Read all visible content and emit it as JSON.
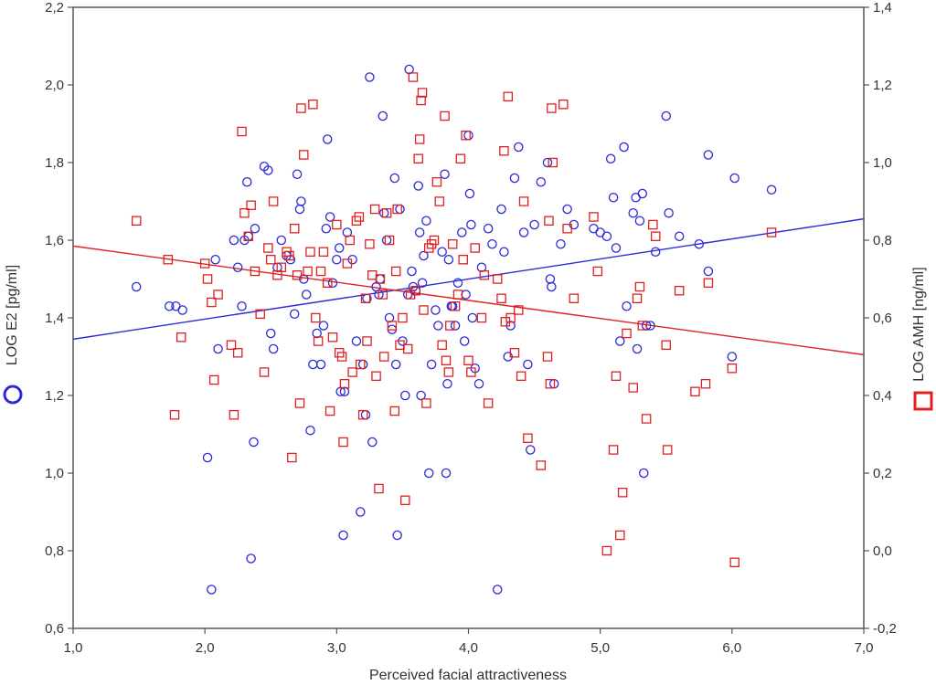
{
  "chart_data": {
    "type": "scatter",
    "title": "",
    "xlabel": "Perceived facial attractiveness",
    "ylabel_left": "LOG E2 [pg/ml]",
    "ylabel_right": "LOG AMH [ng/ml]",
    "xlim": [
      1.0,
      7.0
    ],
    "ylim_left": [
      0.6,
      2.2
    ],
    "ylim_right": [
      -0.2,
      1.4
    ],
    "x_ticks": [
      "1,0",
      "2,0",
      "3,0",
      "4,0",
      "5,0",
      "6,0",
      "7,0"
    ],
    "y_left_ticks": [
      "0,6",
      "0,8",
      "1,0",
      "1,2",
      "1,4",
      "1,6",
      "1,8",
      "2,0",
      "2,2"
    ],
    "y_right_ticks": [
      "-0,2",
      "0,0",
      "0,2",
      "0,4",
      "0,6",
      "0,8",
      "1,0",
      "1,2",
      "1,4"
    ],
    "grid": false,
    "series": [
      {
        "name": "LOG E2",
        "axis": "left",
        "marker": "circle",
        "color": "#2a2ad8",
        "points": [
          [
            1.48,
            1.48
          ],
          [
            1.73,
            1.43
          ],
          [
            1.78,
            1.43
          ],
          [
            1.83,
            1.42
          ],
          [
            2.02,
            1.04
          ],
          [
            2.05,
            0.7
          ],
          [
            2.08,
            1.55
          ],
          [
            2.1,
            1.32
          ],
          [
            2.22,
            1.6
          ],
          [
            2.25,
            1.53
          ],
          [
            2.28,
            1.43
          ],
          [
            2.3,
            1.6
          ],
          [
            2.32,
            1.75
          ],
          [
            2.33,
            1.61
          ],
          [
            2.35,
            0.78
          ],
          [
            2.37,
            1.08
          ],
          [
            2.38,
            1.63
          ],
          [
            2.45,
            1.79
          ],
          [
            2.48,
            1.78
          ],
          [
            2.5,
            1.36
          ],
          [
            2.52,
            1.32
          ],
          [
            2.55,
            1.53
          ],
          [
            2.58,
            1.6
          ],
          [
            2.62,
            1.56
          ],
          [
            2.65,
            1.55
          ],
          [
            2.68,
            1.41
          ],
          [
            2.7,
            1.77
          ],
          [
            2.72,
            1.68
          ],
          [
            2.73,
            1.7
          ],
          [
            2.75,
            1.5
          ],
          [
            2.77,
            1.46
          ],
          [
            2.8,
            1.11
          ],
          [
            2.82,
            1.28
          ],
          [
            2.85,
            1.36
          ],
          [
            2.88,
            1.28
          ],
          [
            2.9,
            1.38
          ],
          [
            2.92,
            1.63
          ],
          [
            2.93,
            1.86
          ],
          [
            2.95,
            1.66
          ],
          [
            2.97,
            1.49
          ],
          [
            3.0,
            1.55
          ],
          [
            3.02,
            1.58
          ],
          [
            3.03,
            1.21
          ],
          [
            3.05,
            0.84
          ],
          [
            3.06,
            1.21
          ],
          [
            3.08,
            1.62
          ],
          [
            3.12,
            1.55
          ],
          [
            3.15,
            1.34
          ],
          [
            3.18,
            0.9
          ],
          [
            3.2,
            1.28
          ],
          [
            3.22,
            1.15
          ],
          [
            3.23,
            1.45
          ],
          [
            3.25,
            2.02
          ],
          [
            3.27,
            1.08
          ],
          [
            3.3,
            1.48
          ],
          [
            3.32,
            1.46
          ],
          [
            3.33,
            1.5
          ],
          [
            3.35,
            1.92
          ],
          [
            3.36,
            1.67
          ],
          [
            3.38,
            1.6
          ],
          [
            3.4,
            1.4
          ],
          [
            3.42,
            1.37
          ],
          [
            3.44,
            1.76
          ],
          [
            3.45,
            1.28
          ],
          [
            3.46,
            0.84
          ],
          [
            3.48,
            1.68
          ],
          [
            3.5,
            1.34
          ],
          [
            3.52,
            1.2
          ],
          [
            3.54,
            1.46
          ],
          [
            3.55,
            2.04
          ],
          [
            3.57,
            1.52
          ],
          [
            3.58,
            1.48
          ],
          [
            3.6,
            1.47
          ],
          [
            3.62,
            1.74
          ],
          [
            3.63,
            1.62
          ],
          [
            3.64,
            1.2
          ],
          [
            3.65,
            1.49
          ],
          [
            3.66,
            1.56
          ],
          [
            3.68,
            1.65
          ],
          [
            3.7,
            1.0
          ],
          [
            3.72,
            1.28
          ],
          [
            3.75,
            1.42
          ],
          [
            3.77,
            1.38
          ],
          [
            3.8,
            1.57
          ],
          [
            3.82,
            1.77
          ],
          [
            3.83,
            1.0
          ],
          [
            3.84,
            1.23
          ],
          [
            3.85,
            1.55
          ],
          [
            3.87,
            1.43
          ],
          [
            3.88,
            1.43
          ],
          [
            3.9,
            1.38
          ],
          [
            3.92,
            1.49
          ],
          [
            3.95,
            1.62
          ],
          [
            3.97,
            1.34
          ],
          [
            3.98,
            1.46
          ],
          [
            4.0,
            1.87
          ],
          [
            4.01,
            1.72
          ],
          [
            4.02,
            1.64
          ],
          [
            4.03,
            1.4
          ],
          [
            4.05,
            1.27
          ],
          [
            4.08,
            1.23
          ],
          [
            4.1,
            1.53
          ],
          [
            4.15,
            1.63
          ],
          [
            4.18,
            1.59
          ],
          [
            4.22,
            0.7
          ],
          [
            4.25,
            1.68
          ],
          [
            4.27,
            1.57
          ],
          [
            4.3,
            1.3
          ],
          [
            4.32,
            1.38
          ],
          [
            4.35,
            1.76
          ],
          [
            4.38,
            1.84
          ],
          [
            4.42,
            1.62
          ],
          [
            4.45,
            1.28
          ],
          [
            4.47,
            1.06
          ],
          [
            4.5,
            1.64
          ],
          [
            4.55,
            1.75
          ],
          [
            4.6,
            1.8
          ],
          [
            4.62,
            1.5
          ],
          [
            4.63,
            1.48
          ],
          [
            4.65,
            1.23
          ],
          [
            4.7,
            1.59
          ],
          [
            4.75,
            1.68
          ],
          [
            4.8,
            1.64
          ],
          [
            4.95,
            1.63
          ],
          [
            5.0,
            1.62
          ],
          [
            5.05,
            1.61
          ],
          [
            5.08,
            1.81
          ],
          [
            5.1,
            1.71
          ],
          [
            5.12,
            1.58
          ],
          [
            5.15,
            1.34
          ],
          [
            5.18,
            1.84
          ],
          [
            5.2,
            1.43
          ],
          [
            5.25,
            1.67
          ],
          [
            5.27,
            1.71
          ],
          [
            5.28,
            1.32
          ],
          [
            5.3,
            1.65
          ],
          [
            5.32,
            1.72
          ],
          [
            5.33,
            1.0
          ],
          [
            5.35,
            1.38
          ],
          [
            5.38,
            1.38
          ],
          [
            5.42,
            1.57
          ],
          [
            5.5,
            1.92
          ],
          [
            5.52,
            1.67
          ],
          [
            5.6,
            1.61
          ],
          [
            5.75,
            1.59
          ],
          [
            5.82,
            1.82
          ],
          [
            5.82,
            1.52
          ],
          [
            6.0,
            1.3
          ],
          [
            6.02,
            1.76
          ],
          [
            6.3,
            1.73
          ]
        ]
      },
      {
        "name": "LOG AMH",
        "axis": "right",
        "marker": "square",
        "color": "#e02020",
        "points": [
          [
            1.48,
            0.85
          ],
          [
            1.72,
            0.75
          ],
          [
            1.77,
            0.35
          ],
          [
            1.82,
            0.55
          ],
          [
            2.0,
            0.74
          ],
          [
            2.02,
            0.7
          ],
          [
            2.05,
            0.64
          ],
          [
            2.07,
            0.44
          ],
          [
            2.1,
            0.66
          ],
          [
            2.2,
            0.53
          ],
          [
            2.22,
            0.35
          ],
          [
            2.25,
            0.51
          ],
          [
            2.28,
            1.08
          ],
          [
            2.3,
            0.87
          ],
          [
            2.33,
            0.81
          ],
          [
            2.35,
            0.89
          ],
          [
            2.38,
            0.72
          ],
          [
            2.42,
            0.61
          ],
          [
            2.45,
            0.46
          ],
          [
            2.48,
            0.78
          ],
          [
            2.5,
            0.75
          ],
          [
            2.52,
            0.9
          ],
          [
            2.55,
            0.71
          ],
          [
            2.58,
            0.73
          ],
          [
            2.62,
            0.77
          ],
          [
            2.64,
            0.76
          ],
          [
            2.66,
            0.24
          ],
          [
            2.68,
            0.83
          ],
          [
            2.7,
            0.71
          ],
          [
            2.72,
            0.38
          ],
          [
            2.73,
            1.14
          ],
          [
            2.75,
            1.02
          ],
          [
            2.78,
            0.72
          ],
          [
            2.8,
            0.77
          ],
          [
            2.82,
            1.15
          ],
          [
            2.84,
            0.6
          ],
          [
            2.86,
            0.54
          ],
          [
            2.88,
            0.72
          ],
          [
            2.9,
            0.77
          ],
          [
            2.93,
            0.69
          ],
          [
            2.95,
            0.36
          ],
          [
            2.97,
            0.55
          ],
          [
            3.0,
            0.84
          ],
          [
            3.02,
            0.51
          ],
          [
            3.04,
            0.5
          ],
          [
            3.05,
            0.28
          ],
          [
            3.06,
            0.43
          ],
          [
            3.08,
            0.74
          ],
          [
            3.1,
            0.8
          ],
          [
            3.12,
            0.46
          ],
          [
            3.15,
            0.85
          ],
          [
            3.17,
            0.86
          ],
          [
            3.18,
            0.48
          ],
          [
            3.2,
            0.35
          ],
          [
            3.22,
            0.65
          ],
          [
            3.23,
            0.54
          ],
          [
            3.25,
            0.79
          ],
          [
            3.27,
            0.71
          ],
          [
            3.29,
            0.88
          ],
          [
            3.3,
            0.45
          ],
          [
            3.32,
            0.16
          ],
          [
            3.33,
            0.7
          ],
          [
            3.35,
            0.66
          ],
          [
            3.36,
            0.5
          ],
          [
            3.38,
            0.87
          ],
          [
            3.4,
            0.8
          ],
          [
            3.42,
            0.58
          ],
          [
            3.44,
            0.36
          ],
          [
            3.45,
            0.72
          ],
          [
            3.46,
            0.88
          ],
          [
            3.48,
            0.53
          ],
          [
            3.5,
            0.6
          ],
          [
            3.52,
            0.13
          ],
          [
            3.54,
            0.52
          ],
          [
            3.56,
            0.66
          ],
          [
            3.58,
            1.22
          ],
          [
            3.6,
            0.67
          ],
          [
            3.62,
            1.01
          ],
          [
            3.63,
            1.06
          ],
          [
            3.64,
            1.16
          ],
          [
            3.65,
            1.18
          ],
          [
            3.66,
            0.62
          ],
          [
            3.68,
            0.38
          ],
          [
            3.7,
            0.78
          ],
          [
            3.72,
            0.79
          ],
          [
            3.74,
            0.8
          ],
          [
            3.76,
            0.95
          ],
          [
            3.78,
            0.9
          ],
          [
            3.8,
            0.53
          ],
          [
            3.82,
            1.12
          ],
          [
            3.83,
            0.49
          ],
          [
            3.85,
            0.46
          ],
          [
            3.86,
            0.58
          ],
          [
            3.88,
            0.79
          ],
          [
            3.9,
            0.63
          ],
          [
            3.92,
            0.66
          ],
          [
            3.94,
            1.01
          ],
          [
            3.96,
            0.75
          ],
          [
            3.98,
            1.07
          ],
          [
            4.0,
            0.49
          ],
          [
            4.02,
            0.46
          ],
          [
            4.05,
            0.78
          ],
          [
            4.1,
            0.6
          ],
          [
            4.12,
            0.71
          ],
          [
            4.15,
            0.38
          ],
          [
            4.22,
            0.7
          ],
          [
            4.25,
            0.65
          ],
          [
            4.27,
            1.03
          ],
          [
            4.28,
            0.59
          ],
          [
            4.3,
            1.17
          ],
          [
            4.32,
            0.6
          ],
          [
            4.35,
            0.51
          ],
          [
            4.38,
            0.62
          ],
          [
            4.4,
            0.45
          ],
          [
            4.42,
            0.9
          ],
          [
            4.45,
            0.29
          ],
          [
            4.55,
            0.22
          ],
          [
            4.6,
            0.5
          ],
          [
            4.61,
            0.85
          ],
          [
            4.62,
            0.43
          ],
          [
            4.63,
            1.14
          ],
          [
            4.64,
            1.0
          ],
          [
            4.72,
            1.15
          ],
          [
            4.75,
            0.83
          ],
          [
            4.8,
            0.65
          ],
          [
            4.95,
            0.86
          ],
          [
            4.98,
            0.72
          ],
          [
            5.05,
            0.0
          ],
          [
            5.1,
            0.26
          ],
          [
            5.12,
            0.45
          ],
          [
            5.15,
            0.04
          ],
          [
            5.17,
            0.15
          ],
          [
            5.2,
            0.56
          ],
          [
            5.25,
            0.42
          ],
          [
            5.28,
            0.65
          ],
          [
            5.3,
            0.68
          ],
          [
            5.32,
            0.58
          ],
          [
            5.35,
            0.34
          ],
          [
            5.4,
            0.84
          ],
          [
            5.42,
            0.81
          ],
          [
            5.5,
            0.53
          ],
          [
            5.51,
            0.26
          ],
          [
            5.6,
            0.67
          ],
          [
            5.72,
            0.41
          ],
          [
            5.8,
            0.43
          ],
          [
            5.82,
            0.69
          ],
          [
            6.0,
            0.47
          ],
          [
            6.02,
            -0.03
          ],
          [
            6.3,
            0.82
          ]
        ]
      }
    ],
    "trendlines": [
      {
        "series": "LOG E2",
        "axis": "left",
        "x": [
          1.0,
          7.0
        ],
        "y": [
          1.345,
          1.655
        ]
      },
      {
        "series": "LOG AMH",
        "axis": "right",
        "x": [
          1.0,
          7.0
        ],
        "y": [
          0.785,
          0.505
        ]
      }
    ],
    "legend": {
      "left_icon": "circle-marker-icon",
      "right_icon": "square-marker-icon"
    }
  }
}
